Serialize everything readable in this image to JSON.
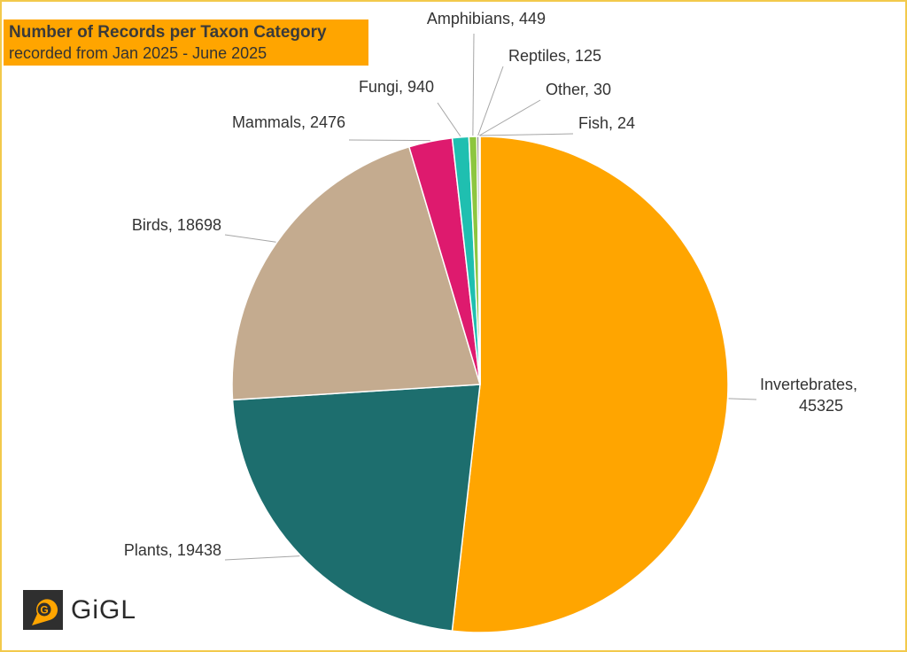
{
  "header": {
    "title": "Number of Records per Taxon Category",
    "subtitle": "recorded from Jan 2025 - June 2025"
  },
  "logo": {
    "text": "GiGL",
    "icon": "map-pin-g-icon"
  },
  "chart_data": {
    "type": "pie",
    "title": "Number of Records per Taxon Category",
    "subtitle": "recorded from Jan 2025 - June 2025",
    "slices": [
      {
        "label": "Invertebrates",
        "value": 45325,
        "color": "#FFA500",
        "text_lines": [
          "Invertebrates,",
          "45325"
        ]
      },
      {
        "label": "Plants",
        "value": 19438,
        "color": "#1D6E6E",
        "text_lines": [
          "Plants, 19438"
        ]
      },
      {
        "label": "Birds",
        "value": 18698,
        "color": "#C4AB8F",
        "text_lines": [
          "Birds, 18698"
        ]
      },
      {
        "label": "Mammals",
        "value": 2476,
        "color": "#DE1A6E",
        "text_lines": [
          "Mammals, 2476"
        ]
      },
      {
        "label": "Fungi",
        "value": 940,
        "color": "#1FBFB0",
        "text_lines": [
          "Fungi, 940"
        ]
      },
      {
        "label": "Amphibians",
        "value": 449,
        "color": "#8DC63F",
        "text_lines": [
          "Amphibians, 449"
        ]
      },
      {
        "label": "Reptiles",
        "value": 125,
        "color": "#6B6B6B",
        "text_lines": [
          "Reptiles, 125"
        ]
      },
      {
        "label": "Other",
        "value": 30,
        "color": "#A0A0A0",
        "text_lines": [
          "Other, 30"
        ]
      },
      {
        "label": "Fish",
        "value": 24,
        "color": "#3B7DD8",
        "text_lines": [
          "Fish, 24"
        ]
      }
    ],
    "legend": "none",
    "data_labels": "outside with leader lines"
  }
}
